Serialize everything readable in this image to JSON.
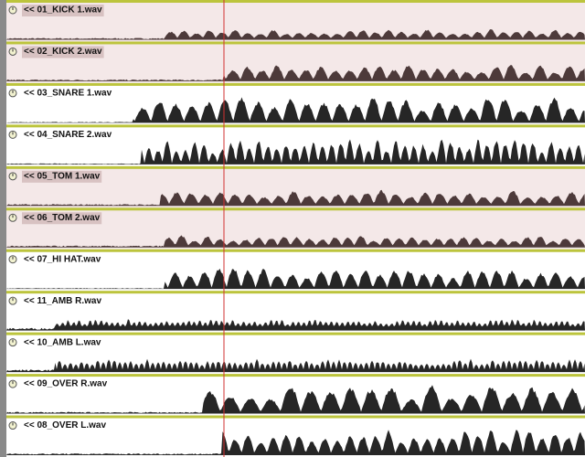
{
  "tracks": [
    {
      "label": "<< 01_KICK 1.wav",
      "highlighted": true
    },
    {
      "label": "<< 02_KICK 2.wav",
      "highlighted": true
    },
    {
      "label": "<< 03_SNARE 1.wav",
      "highlighted": false
    },
    {
      "label": "<< 04_SNARE 2.wav",
      "highlighted": false
    },
    {
      "label": "<< 05_TOM 1.wav",
      "highlighted": true
    },
    {
      "label": "<< 06_TOM 2.wav",
      "highlighted": true
    },
    {
      "label": "<< 07_HI HAT.wav",
      "highlighted": false
    },
    {
      "label": "<< 11_AMB R.wav",
      "highlighted": false
    },
    {
      "label": "<< 10_AMB L.wav",
      "highlighted": false
    },
    {
      "label": "<< 09_OVER R.wav",
      "highlighted": false
    },
    {
      "label": "<< 08_OVER L.wav",
      "highlighted": false
    }
  ]
}
